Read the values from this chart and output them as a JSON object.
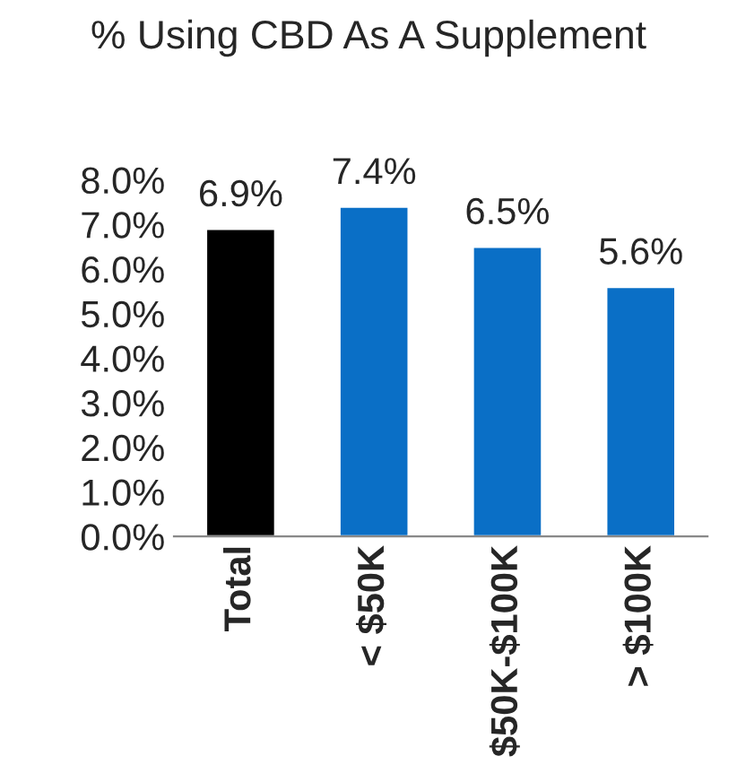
{
  "chart_data": {
    "type": "bar",
    "title": "% Using CBD As A Supplement",
    "categories": [
      "Total",
      "< $50K",
      "$50K-$100K",
      "> $100K"
    ],
    "values": [
      6.9,
      7.4,
      6.5,
      5.6
    ],
    "colors": [
      "#000000",
      "#0a6fc6",
      "#0a6fc6",
      "#0a6fc6"
    ],
    "value_labels": [
      "6.9%",
      "7.4%",
      "6.5%",
      "5.6%"
    ],
    "ylim": [
      0,
      8
    ],
    "yticks": [
      {
        "value": 0,
        "label": "0.0%"
      },
      {
        "value": 1,
        "label": "1.0%"
      },
      {
        "value": 2,
        "label": "2.0%"
      },
      {
        "value": 3,
        "label": "3.0%"
      },
      {
        "value": 4,
        "label": "4.0%"
      },
      {
        "value": 5,
        "label": "5.0%"
      },
      {
        "value": 6,
        "label": "6.0%"
      },
      {
        "value": 7,
        "label": "7.0%"
      },
      {
        "value": 8,
        "label": "8.0%"
      }
    ],
    "grid": false,
    "legend": false
  }
}
